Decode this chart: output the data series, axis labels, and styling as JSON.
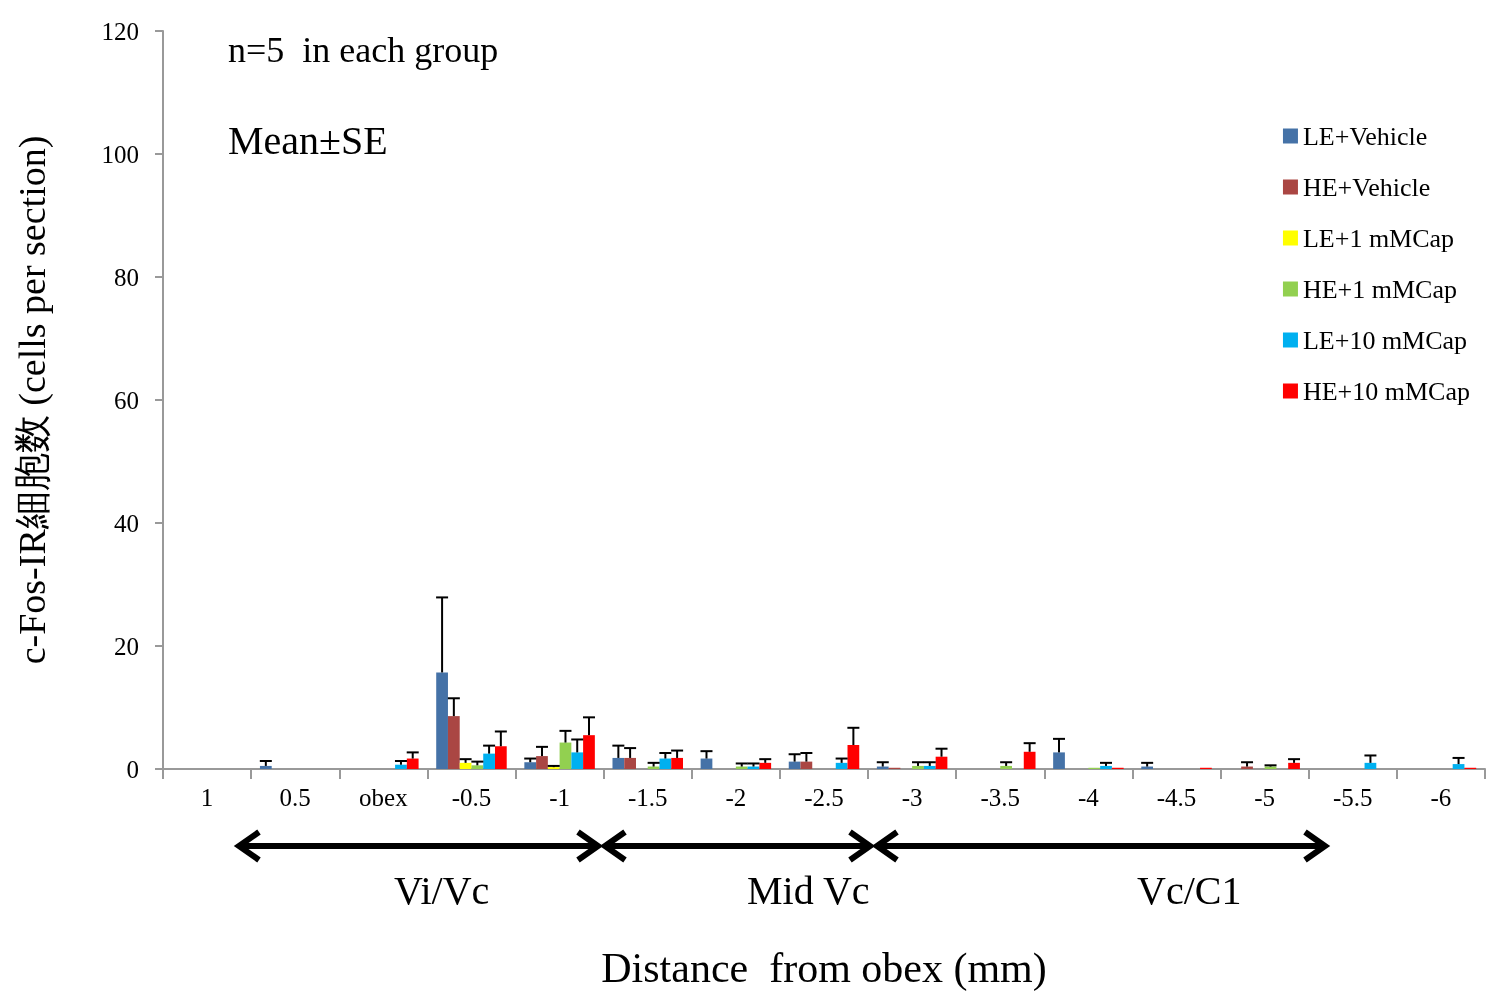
{
  "chart_data": {
    "type": "bar",
    "ylabel": "c-Fos-IR細胞数 (cells per section)",
    "xlabel": "Distance  from obex (mm)",
    "annotations": [
      "n=5  in each group",
      "Mean±SE",
      "Vi/Vc",
      "Mid Vc",
      "Vc/C1"
    ],
    "categories": [
      "1",
      "0.5",
      "obex",
      "-0.5",
      "-1",
      "-1.5",
      "-2",
      "-2.5",
      "-3",
      "-3.5",
      "-4",
      "-4.5",
      "-5",
      "-5.5",
      "-6"
    ],
    "ylim": [
      0,
      120
    ],
    "yticks": [
      0,
      20,
      40,
      60,
      80,
      100,
      120
    ],
    "grid": false,
    "legend": "top right",
    "series": [
      {
        "name": "LE+Vehicle",
        "color": "#4572a7",
        "values": [
          0,
          0.5,
          0,
          15.7,
          1.1,
          1.8,
          1.7,
          1.2,
          0.4,
          0,
          2.7,
          0.4,
          0,
          0,
          0
        ],
        "errors": [
          null,
          [
            0.5,
            1.3
          ],
          null,
          [
            15.7,
            27.9
          ],
          [
            1.1,
            1.7
          ],
          [
            1.8,
            3.8
          ],
          [
            1.7,
            2.9
          ],
          [
            1.2,
            2.4
          ],
          [
            0.4,
            1.1
          ],
          null,
          [
            2.7,
            4.9
          ],
          [
            0.4,
            1.0
          ],
          null,
          null,
          null
        ]
      },
      {
        "name": "HE+Vehicle",
        "color": "#aa4643",
        "values": [
          0,
          0,
          0,
          8.6,
          2.1,
          1.8,
          0,
          1.2,
          0.2,
          0,
          0,
          0,
          0.4,
          0,
          0
        ],
        "errors": [
          null,
          null,
          null,
          [
            8.6,
            11.5
          ],
          [
            2.1,
            3.6
          ],
          [
            1.8,
            3.4
          ],
          null,
          [
            1.2,
            2.6
          ],
          null,
          null,
          null,
          null,
          [
            0.4,
            1.1
          ],
          null,
          null
        ]
      },
      {
        "name": "LE+1 mMCap",
        "color": "#ffff00",
        "values": [
          0,
          0,
          0,
          1.0,
          0.3,
          0,
          0,
          0,
          0,
          0,
          0,
          0,
          0,
          0,
          0
        ],
        "errors": [
          null,
          null,
          null,
          [
            1.0,
            1.6
          ],
          [
            0.3,
            0.5
          ],
          null,
          null,
          null,
          null,
          null,
          null,
          null,
          null,
          null,
          null
        ]
      },
      {
        "name": "HE+1 mMCap",
        "color": "#92d050",
        "values": [
          0,
          0,
          0,
          0.6,
          4.3,
          0.4,
          0.4,
          0,
          0.5,
          0.5,
          0.2,
          0,
          0.4,
          0,
          0
        ],
        "errors": [
          null,
          null,
          null,
          [
            0.6,
            1.2
          ],
          [
            4.3,
            6.2
          ],
          [
            0.4,
            1.0
          ],
          [
            0.4,
            0.9
          ],
          null,
          [
            0.5,
            1.1
          ],
          [
            0.5,
            1.1
          ],
          null,
          null,
          [
            0.4,
            0.6
          ],
          null,
          null
        ]
      },
      {
        "name": "LE+10 mMCap",
        "color": "#00b0f0",
        "values": [
          0,
          0,
          0.7,
          2.5,
          2.7,
          1.7,
          0.4,
          1.0,
          0.5,
          0,
          0.5,
          0,
          0,
          1.0,
          0.8
        ],
        "errors": [
          null,
          null,
          [
            0.7,
            1.3
          ],
          [
            2.5,
            3.8
          ],
          [
            2.7,
            4.8
          ],
          [
            1.7,
            2.6
          ],
          [
            0.4,
            0.9
          ],
          [
            1.0,
            1.7
          ],
          [
            0.5,
            1.1
          ],
          null,
          [
            0.5,
            1.0
          ],
          null,
          null,
          [
            1.0,
            2.2
          ],
          [
            0.8,
            1.8
          ]
        ]
      },
      {
        "name": "HE+10 mMCap",
        "color": "#ff0000",
        "values": [
          0,
          0,
          1.7,
          3.7,
          5.5,
          1.8,
          1.0,
          3.9,
          2.0,
          2.8,
          0.2,
          0.2,
          1.0,
          0,
          0.2
        ],
        "errors": [
          null,
          null,
          [
            1.7,
            2.7
          ],
          [
            3.7,
            6.1
          ],
          [
            5.5,
            8.4
          ],
          [
            1.8,
            3.0
          ],
          [
            1.0,
            1.6
          ],
          [
            3.9,
            6.7
          ],
          [
            2.0,
            3.3
          ],
          [
            2.8,
            4.2
          ],
          null,
          null,
          [
            1.0,
            1.6
          ],
          null,
          null
        ]
      }
    ]
  }
}
